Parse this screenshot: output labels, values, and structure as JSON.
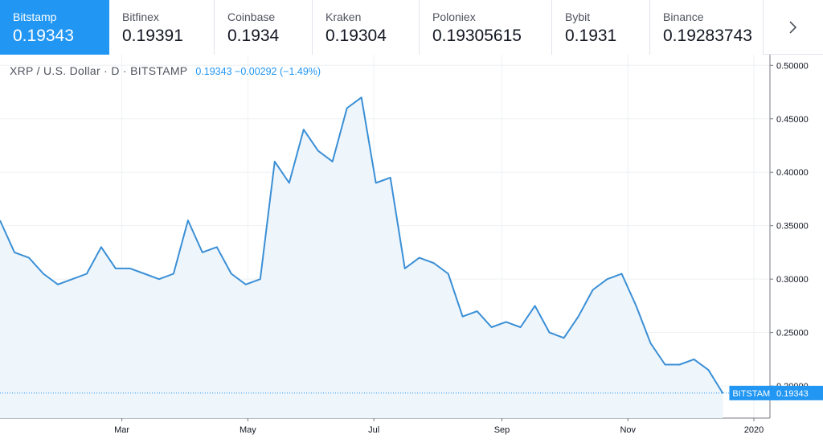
{
  "exchanges": [
    {
      "name": "Bitstamp",
      "price": "0.19343",
      "active": true
    },
    {
      "name": "Bitfinex",
      "price": "0.19391",
      "active": false
    },
    {
      "name": "Coinbase",
      "price": "0.1934",
      "active": false
    },
    {
      "name": "Kraken",
      "price": "0.19304",
      "active": false
    },
    {
      "name": "Poloniex",
      "price": "0.19305615",
      "active": false
    },
    {
      "name": "Bybit",
      "price": "0.1931",
      "active": false
    },
    {
      "name": "Binance",
      "price": "0.19283743",
      "active": false
    }
  ],
  "next_icon": "chevron-right-icon",
  "header": {
    "pair": "XRP / U.S. Dollar · D · BITSTAMP",
    "last": "0.19343",
    "change": "−0.00292",
    "change_pct": "(−1.49%)"
  },
  "colors": {
    "accent": "#2196f3",
    "line": "#3a8fd6",
    "area": "#eef5fb",
    "grid": "#eef0f3",
    "axis_text": "#131722"
  },
  "chart_data": {
    "type": "area",
    "series": [
      {
        "name": "BITSTAMP",
        "x": [
          "2019-01-01",
          "2019-01-08",
          "2019-01-15",
          "2019-01-22",
          "2019-01-29",
          "2019-02-05",
          "2019-02-12",
          "2019-02-19",
          "2019-02-26",
          "2019-03-05",
          "2019-03-12",
          "2019-03-19",
          "2019-03-26",
          "2019-04-02",
          "2019-04-09",
          "2019-04-16",
          "2019-04-23",
          "2019-04-30",
          "2019-05-07",
          "2019-05-14",
          "2019-05-21",
          "2019-05-28",
          "2019-06-04",
          "2019-06-11",
          "2019-06-18",
          "2019-06-25",
          "2019-07-02",
          "2019-07-09",
          "2019-07-16",
          "2019-07-23",
          "2019-07-30",
          "2019-08-06",
          "2019-08-13",
          "2019-08-20",
          "2019-08-27",
          "2019-09-03",
          "2019-09-10",
          "2019-09-17",
          "2019-09-24",
          "2019-10-01",
          "2019-10-08",
          "2019-10-15",
          "2019-10-22",
          "2019-10-29",
          "2019-11-05",
          "2019-11-12",
          "2019-11-19",
          "2019-11-26",
          "2019-12-03",
          "2019-12-10",
          "2019-12-17"
        ],
        "y": [
          0.355,
          0.325,
          0.32,
          0.305,
          0.295,
          0.3,
          0.305,
          0.33,
          0.31,
          0.31,
          0.305,
          0.3,
          0.305,
          0.355,
          0.325,
          0.33,
          0.305,
          0.295,
          0.3,
          0.41,
          0.39,
          0.44,
          0.42,
          0.41,
          0.46,
          0.47,
          0.39,
          0.395,
          0.31,
          0.32,
          0.315,
          0.305,
          0.265,
          0.27,
          0.255,
          0.26,
          0.255,
          0.275,
          0.25,
          0.245,
          0.265,
          0.29,
          0.3,
          0.305,
          0.275,
          0.24,
          0.22,
          0.22,
          0.225,
          0.215,
          0.193
        ]
      }
    ],
    "x_ticks": [
      "Mar",
      "May",
      "Jul",
      "Sep",
      "Nov",
      "2020"
    ],
    "y_ticks": [
      "0.20000",
      "0.25000",
      "0.30000",
      "0.35000",
      "0.40000",
      "0.45000",
      "0.50000"
    ],
    "ylim": [
      0.17,
      0.51
    ],
    "xlim": [
      "2019-01-01",
      "2020-01-01"
    ],
    "last_label": "BITSTAMP",
    "last_value": "0.19343",
    "grid": true,
    "legend": "top-left"
  }
}
